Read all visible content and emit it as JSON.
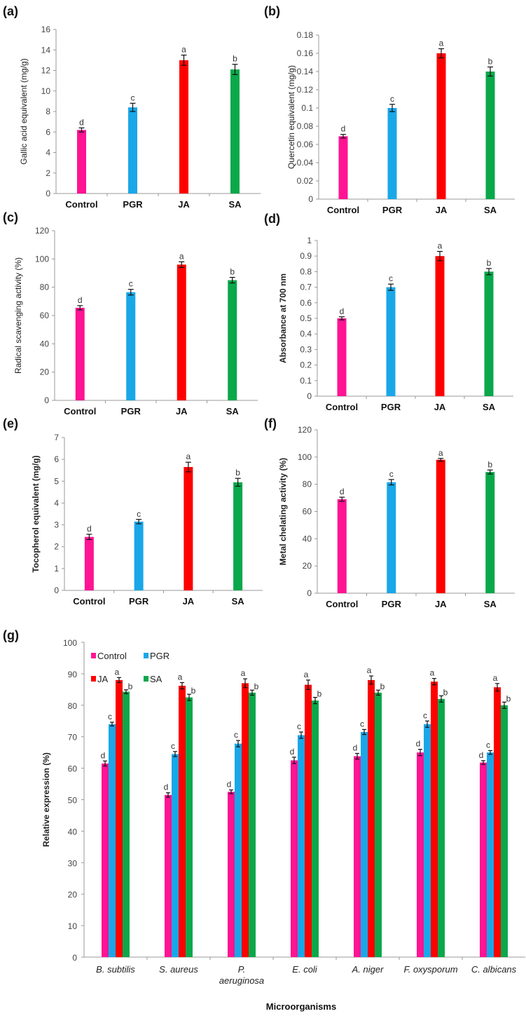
{
  "colors": {
    "Control": "#ff1493",
    "PGR": "#1aa7e8",
    "JA": "#ff0000",
    "SA": "#0aa84a"
  },
  "chart_data": [
    {
      "id": "a",
      "panel_label": "(a)",
      "type": "bar",
      "categories": [
        "Control",
        "PGR",
        "JA",
        "SA"
      ],
      "values": [
        6.2,
        8.4,
        13.0,
        12.1
      ],
      "errors": [
        0.2,
        0.4,
        0.5,
        0.5
      ],
      "significance": [
        "d",
        "c",
        "a",
        "b"
      ],
      "ylabel": "Gallic acid equivalent (mg/g)",
      "xlabel": "",
      "ylim": [
        0,
        16
      ],
      "yticks": [
        0,
        2,
        4,
        6,
        8,
        10,
        12,
        14,
        16
      ],
      "ytick_labels": [
        "0",
        "2",
        "4",
        "6",
        "8",
        "10",
        "12",
        "14",
        "16"
      ],
      "grid": false
    },
    {
      "id": "b",
      "panel_label": "(b)",
      "type": "bar",
      "categories": [
        "Control",
        "PGR",
        "JA",
        "SA"
      ],
      "values": [
        0.069,
        0.1,
        0.16,
        0.14
      ],
      "errors": [
        0.002,
        0.004,
        0.005,
        0.005
      ],
      "significance": [
        "d",
        "c",
        "a",
        "b"
      ],
      "ylabel": "Quercetin equivalent (mg/g)",
      "xlabel": "",
      "ylim": [
        0,
        0.18
      ],
      "yticks": [
        0,
        0.02,
        0.04,
        0.06,
        0.08,
        0.1,
        0.12,
        0.14,
        0.16,
        0.18
      ],
      "ytick_labels": [
        "0",
        "0.02",
        "0.04",
        "0.06",
        "0.08",
        "0.1",
        "0.12",
        "0.14",
        "0.16",
        "0.18"
      ],
      "grid": false
    },
    {
      "id": "c",
      "panel_label": "(c)",
      "type": "bar",
      "categories": [
        "Control",
        "PGR",
        "JA",
        "SA"
      ],
      "values": [
        65.5,
        76.5,
        96,
        85
      ],
      "errors": [
        1.5,
        2,
        2,
        2
      ],
      "significance": [
        "d",
        "c",
        "a",
        "b"
      ],
      "ylabel": "Radical scavenging activity (%)",
      "xlabel": "",
      "ylim": [
        0,
        120
      ],
      "yticks": [
        0,
        20,
        40,
        60,
        80,
        100,
        120
      ],
      "ytick_labels": [
        "0",
        "20",
        "40",
        "60",
        "80",
        "100",
        "120"
      ],
      "grid": false
    },
    {
      "id": "d",
      "panel_label": "(d)",
      "type": "bar",
      "categories": [
        "Control",
        "PGR",
        "JA",
        "SA"
      ],
      "values": [
        0.5,
        0.7,
        0.9,
        0.8
      ],
      "errors": [
        0.01,
        0.02,
        0.03,
        0.02
      ],
      "significance": [
        "d",
        "c",
        "a",
        "b"
      ],
      "ylabel": "Absorbance at 700 nm",
      "xlabel": "",
      "ylim": [
        0,
        1
      ],
      "yticks": [
        0,
        0.1,
        0.2,
        0.3,
        0.4,
        0.5,
        0.6,
        0.7,
        0.8,
        0.9,
        1
      ],
      "ytick_labels": [
        "0",
        "0.1",
        "0.2",
        "0.3",
        "0.4",
        "0.5",
        "0.6",
        "0.7",
        "0.8",
        "0.9",
        "1"
      ],
      "grid": false
    },
    {
      "id": "e",
      "panel_label": "(e)",
      "type": "bar",
      "categories": [
        "Control",
        "PGR",
        "JA",
        "SA"
      ],
      "values": [
        2.45,
        3.15,
        5.65,
        4.95
      ],
      "errors": [
        0.12,
        0.1,
        0.22,
        0.18
      ],
      "significance": [
        "d",
        "c",
        "a",
        "b"
      ],
      "ylabel": "Tocopherol equivalent (mg/g)",
      "xlabel": "",
      "ylim": [
        0,
        7
      ],
      "yticks": [
        0,
        1,
        2,
        3,
        4,
        5,
        6,
        7
      ],
      "ytick_labels": [
        "0",
        "1",
        "2",
        "3",
        "4",
        "5",
        "6",
        "7"
      ],
      "grid": false
    },
    {
      "id": "f",
      "panel_label": "(f)",
      "type": "bar",
      "categories": [
        "Control",
        "PGR",
        "JA",
        "SA"
      ],
      "values": [
        69,
        81.5,
        98,
        89
      ],
      "errors": [
        1.5,
        2,
        1,
        1.5
      ],
      "significance": [
        "d",
        "c",
        "a",
        "b"
      ],
      "ylabel": "Metal chelating activity (%)",
      "xlabel": "",
      "ylim": [
        0,
        120
      ],
      "yticks": [
        0,
        20,
        40,
        60,
        80,
        100,
        120
      ],
      "ytick_labels": [
        "0",
        "20",
        "40",
        "60",
        "80",
        "100",
        "120"
      ],
      "grid": false
    },
    {
      "id": "g",
      "panel_label": "(g)",
      "type": "bar",
      "categories": [
        "B. subtilis",
        "S. aureus",
        "P. aeruginosa",
        "E. coli",
        "A. niger",
        "F. oxysporum",
        "C. albicans"
      ],
      "category_lines": [
        [
          "B. subtilis"
        ],
        [
          "S. aureus"
        ],
        [
          "P.",
          "aeruginosa"
        ],
        [
          "E. coli"
        ],
        [
          "A. niger"
        ],
        [
          "F. oxysporum"
        ],
        [
          "C. albicans"
        ]
      ],
      "series": [
        {
          "name": "Control",
          "values": [
            61.5,
            51.5,
            52.5,
            62.5,
            63.8,
            65,
            61.8
          ],
          "errors": [
            0.8,
            0.7,
            0.6,
            1.0,
            0.9,
            1.0,
            0.6
          ],
          "significance": [
            "d",
            "d",
            "d",
            "d",
            "d",
            "d",
            "d"
          ]
        },
        {
          "name": "PGR",
          "values": [
            74,
            64.5,
            67.8,
            70.5,
            71.5,
            74,
            65
          ],
          "errors": [
            0.6,
            0.8,
            1.0,
            1.0,
            0.8,
            1.0,
            0.6
          ],
          "significance": [
            "c",
            "c",
            "c",
            "c",
            "c",
            "c",
            "c"
          ]
        },
        {
          "name": "JA",
          "values": [
            88,
            86.2,
            87,
            86.5,
            88,
            87.5,
            85.7
          ],
          "errors": [
            0.8,
            1.0,
            1.4,
            1.5,
            1.3,
            1.0,
            1.2
          ],
          "significance": [
            "a",
            "a",
            "a",
            "a",
            "a",
            "a",
            "a"
          ]
        },
        {
          "name": "SA",
          "values": [
            84.3,
            82.5,
            84,
            81.5,
            84,
            82,
            80
          ],
          "errors": [
            0.6,
            1.0,
            0.8,
            1.0,
            0.8,
            1.0,
            1.0
          ],
          "significance": [
            "b",
            "b",
            "b",
            "b",
            "b",
            "b",
            "b"
          ]
        }
      ],
      "legend": [
        "Control",
        "PGR",
        "JA",
        "SA"
      ],
      "legend_placement": "top-left",
      "ylabel": "Relative expression (%)",
      "xlabel": "Microorganisms",
      "ylim": [
        0,
        100
      ],
      "yticks": [
        0,
        10,
        20,
        30,
        40,
        50,
        60,
        70,
        80,
        90,
        100
      ],
      "ytick_labels": [
        "0",
        "10",
        "20",
        "30",
        "40",
        "50",
        "60",
        "70",
        "80",
        "90",
        "100"
      ],
      "grid": false
    }
  ]
}
